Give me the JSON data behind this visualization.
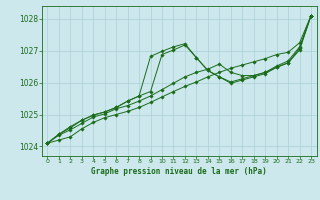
{
  "title": "Graphe pression niveau de la mer (hPa)",
  "bg_color": "#cce8ec",
  "grid_color": "#aad0d8",
  "line_color": "#1a6b1a",
  "xlim": [
    -0.5,
    23.5
  ],
  "ylim": [
    1023.7,
    1028.4
  ],
  "xticks": [
    0,
    1,
    2,
    3,
    4,
    5,
    6,
    7,
    8,
    9,
    10,
    11,
    12,
    13,
    14,
    15,
    16,
    17,
    18,
    19,
    20,
    21,
    22,
    23
  ],
  "yticks": [
    1024,
    1025,
    1026,
    1027,
    1028
  ],
  "series": [
    [
      1024.1,
      1024.2,
      1024.3,
      1024.55,
      1024.75,
      1024.9,
      1025.0,
      1025.1,
      1025.22,
      1025.38,
      1025.55,
      1025.72,
      1025.88,
      1026.02,
      1026.18,
      1026.32,
      1026.45,
      1026.55,
      1026.65,
      1026.75,
      1026.88,
      1026.95,
      1027.25,
      1028.1
    ],
    [
      1024.1,
      1024.38,
      1024.58,
      1024.82,
      1024.98,
      1025.08,
      1025.22,
      1025.42,
      1025.58,
      1026.82,
      1026.98,
      1027.12,
      1027.22,
      1026.78,
      1026.38,
      1026.18,
      1025.98,
      1026.08,
      1026.18,
      1026.28,
      1026.48,
      1026.62,
      1027.08,
      1028.1
    ],
    [
      1024.1,
      1024.35,
      1024.52,
      1024.72,
      1024.92,
      1025.02,
      1025.18,
      1025.28,
      1025.42,
      1025.58,
      1025.78,
      1025.98,
      1026.18,
      1026.32,
      1026.42,
      1026.58,
      1026.32,
      1026.22,
      1026.22,
      1026.32,
      1026.48,
      1026.62,
      1027.02,
      1028.1
    ],
    [
      1024.1,
      1024.38,
      1024.62,
      1024.82,
      1024.98,
      1025.08,
      1025.22,
      1025.42,
      1025.58,
      1025.72,
      1026.88,
      1027.02,
      1027.18,
      1026.78,
      1026.38,
      1026.18,
      1026.02,
      1026.12,
      1026.22,
      1026.32,
      1026.52,
      1026.68,
      1027.12,
      1028.1
    ]
  ]
}
